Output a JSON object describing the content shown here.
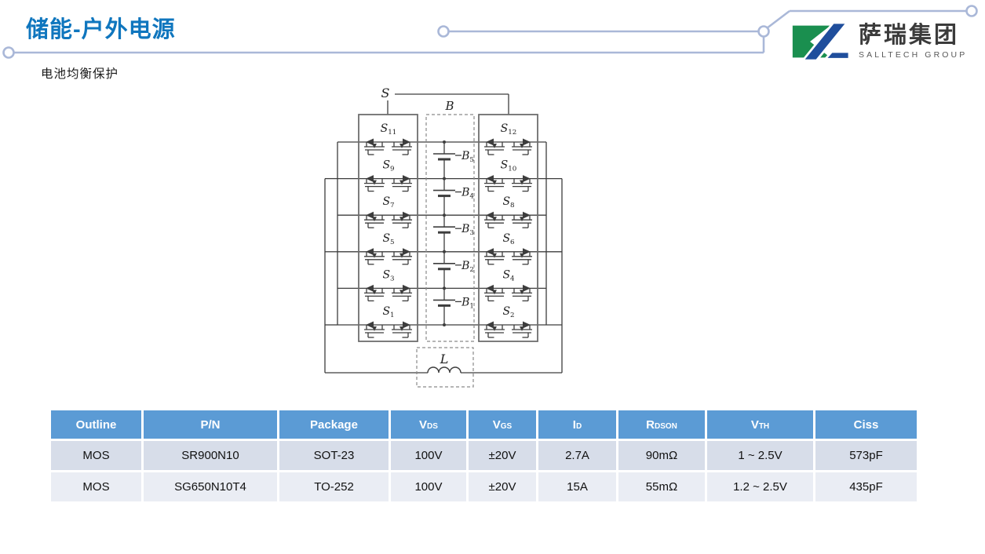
{
  "slide": {
    "title": "储能-户外电源",
    "subtitle": "电池均衡保护"
  },
  "logo": {
    "company_cn": "萨瑞集团",
    "company_en": "SALLTECH GROUP"
  },
  "diagram": {
    "top_node_label": "S",
    "battery_group_label": "B",
    "inductor_label": "L",
    "left_switches": [
      {
        "t": "S",
        "s": "11"
      },
      {
        "t": "S",
        "s": "9"
      },
      {
        "t": "S",
        "s": "7"
      },
      {
        "t": "S",
        "s": "5"
      },
      {
        "t": "S",
        "s": "3"
      },
      {
        "t": "S",
        "s": "1"
      }
    ],
    "right_switches": [
      {
        "t": "S",
        "s": "12"
      },
      {
        "t": "S",
        "s": "10"
      },
      {
        "t": "S",
        "s": "8"
      },
      {
        "t": "S",
        "s": "6"
      },
      {
        "t": "S",
        "s": "4"
      },
      {
        "t": "S",
        "s": "2"
      }
    ],
    "batteries": [
      {
        "t": "B",
        "s": "5"
      },
      {
        "t": "B",
        "s": "4"
      },
      {
        "t": "B",
        "s": "3"
      },
      {
        "t": "B",
        "s": "2"
      },
      {
        "t": "B",
        "s": "1"
      }
    ]
  },
  "table": {
    "columns": [
      {
        "t": "Outline",
        "s": ""
      },
      {
        "t": "P/N",
        "s": ""
      },
      {
        "t": "Package",
        "s": ""
      },
      {
        "t": "V",
        "s": "DS"
      },
      {
        "t": "V",
        "s": "GS"
      },
      {
        "t": "I",
        "s": "D"
      },
      {
        "t": "R",
        "s": "DSON"
      },
      {
        "t": "V",
        "s": "TH"
      },
      {
        "t": "Ciss",
        "s": ""
      }
    ],
    "rows": [
      [
        "MOS",
        "SR900N10",
        "SOT-23",
        "100V",
        "±20V",
        "2.7A",
        "90mΩ",
        "1 ~ 2.5V",
        "573pF"
      ],
      [
        "MOS",
        "SG650N10T4",
        "TO-252",
        "100V",
        "±20V",
        "15A",
        "55mΩ",
        "1.2 ~ 2.5V",
        "435pF"
      ]
    ]
  },
  "colors": {
    "title_blue": "#0F76BE",
    "header_blue": "#5B9BD5",
    "row_odd": "#D7DDE9",
    "row_even": "#EAEDF4",
    "decor_line": "#AAB8D8",
    "logo_green": "#1A8F4F",
    "logo_blue": "#1F4E9C",
    "wire": "#3d3d3d"
  }
}
